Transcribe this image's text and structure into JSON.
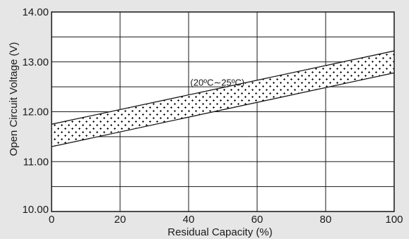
{
  "chart_data": {
    "type": "area",
    "title": "",
    "xlabel": "Residual Capacity (%)",
    "ylabel": "Open Circuit Voltage (V)",
    "xlim": [
      0,
      100
    ],
    "ylim": [
      10.0,
      14.0
    ],
    "x_ticks": [
      "0",
      "20",
      "40",
      "60",
      "80",
      "100"
    ],
    "y_ticks": [
      "10.00",
      "11.00",
      "12.00",
      "13.00",
      "14.00"
    ],
    "grid": true,
    "series": [
      {
        "x": [
          0,
          100
        ],
        "upper": [
          11.75,
          13.22
        ],
        "lower": [
          11.3,
          12.78
        ]
      }
    ],
    "annotations": [
      {
        "text": "(20ºC∼25ºC)",
        "x": 40.5,
        "y": 12.52
      }
    ],
    "colors": {
      "lines": "#1a1a1a",
      "band_fill": "#ffffff",
      "background": "#e6e6e6"
    }
  }
}
